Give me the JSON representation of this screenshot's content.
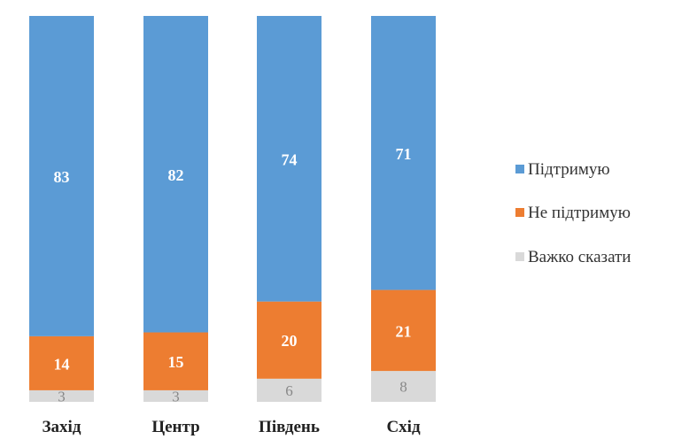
{
  "chart_data": {
    "type": "bar",
    "stacked": true,
    "percent_stacked": true,
    "categories": [
      "Захід",
      "Центр",
      "Південь",
      "Схід"
    ],
    "series": [
      {
        "name": "Підтримую",
        "values": [
          83,
          82,
          74,
          71
        ],
        "color": "#5B9BD5"
      },
      {
        "name": "Не підтримую",
        "values": [
          14,
          15,
          20,
          21
        ],
        "color": "#ED7D31"
      },
      {
        "name": "Важко сказати",
        "values": [
          3,
          3,
          6,
          8
        ],
        "color": "#D9D9D9"
      }
    ],
    "legend_position": "right",
    "grid": false,
    "data_labels": true
  }
}
